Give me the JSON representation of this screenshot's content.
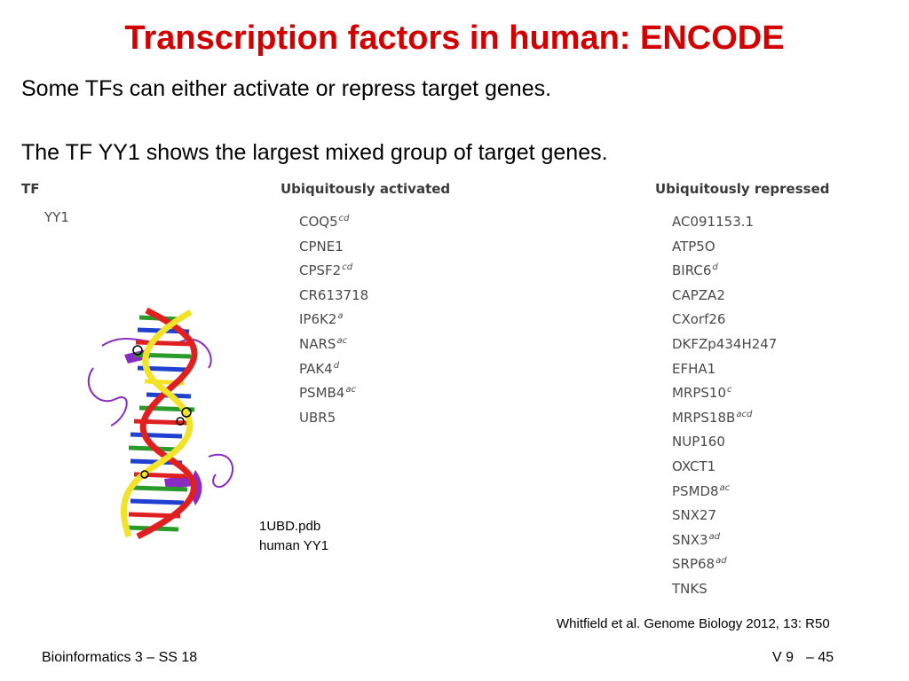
{
  "slide": {
    "title": "Transcription factors in human: ENCODE",
    "line1": "Some TFs can either activate or repress target genes.",
    "line2": "The TF YY1 shows the largest mixed group of target genes."
  },
  "table": {
    "col_tf": "TF",
    "col_activated": "Ubiquitously activated",
    "col_repressed": "Ubiquitously repressed",
    "tf": "YY1",
    "activated": [
      {
        "name": "COQ5",
        "sup": "cd"
      },
      {
        "name": "CPNE1",
        "sup": ""
      },
      {
        "name": "CPSF2",
        "sup": "cd"
      },
      {
        "name": "CR613718",
        "sup": ""
      },
      {
        "name": "IP6K2",
        "sup": "a"
      },
      {
        "name": "NARS",
        "sup": "ac"
      },
      {
        "name": "PAK4",
        "sup": "d"
      },
      {
        "name": "PSMB4",
        "sup": "ac"
      },
      {
        "name": "UBR5",
        "sup": ""
      }
    ],
    "repressed": [
      {
        "name": "AC091153.1",
        "sup": ""
      },
      {
        "name": "ATP5O",
        "sup": ""
      },
      {
        "name": "BIRC6",
        "sup": "d"
      },
      {
        "name": "CAPZA2",
        "sup": ""
      },
      {
        "name": "CXorf26",
        "sup": ""
      },
      {
        "name": "DKFZp434H247",
        "sup": ""
      },
      {
        "name": "EFHA1",
        "sup": ""
      },
      {
        "name": "MRPS10",
        "sup": "c"
      },
      {
        "name": "MRPS18B",
        "sup": "acd"
      },
      {
        "name": "NUP160",
        "sup": ""
      },
      {
        "name": "OXCT1",
        "sup": ""
      },
      {
        "name": "PSMD8",
        "sup": "ac"
      },
      {
        "name": "SNX27",
        "sup": ""
      },
      {
        "name": "SNX3",
        "sup": "ad"
      },
      {
        "name": "SRP68",
        "sup": "ad"
      },
      {
        "name": "TNKS",
        "sup": ""
      }
    ]
  },
  "figure": {
    "caption_line1": "1UBD.pdb",
    "caption_line2": "human YY1"
  },
  "citation": "Whitfield et al. Genome Biology 2012, 13: R50",
  "footer": {
    "course": "Bioinformatics 3 – SS 18",
    "slide_left": "V 9",
    "slide_right": "– 45"
  },
  "colors": {
    "title": "#d40000",
    "table_text": "#4a4a4a",
    "dna_strand_a": "#e02020",
    "dna_strand_b": "#f2e22a",
    "protein": "#8a2bc2"
  }
}
